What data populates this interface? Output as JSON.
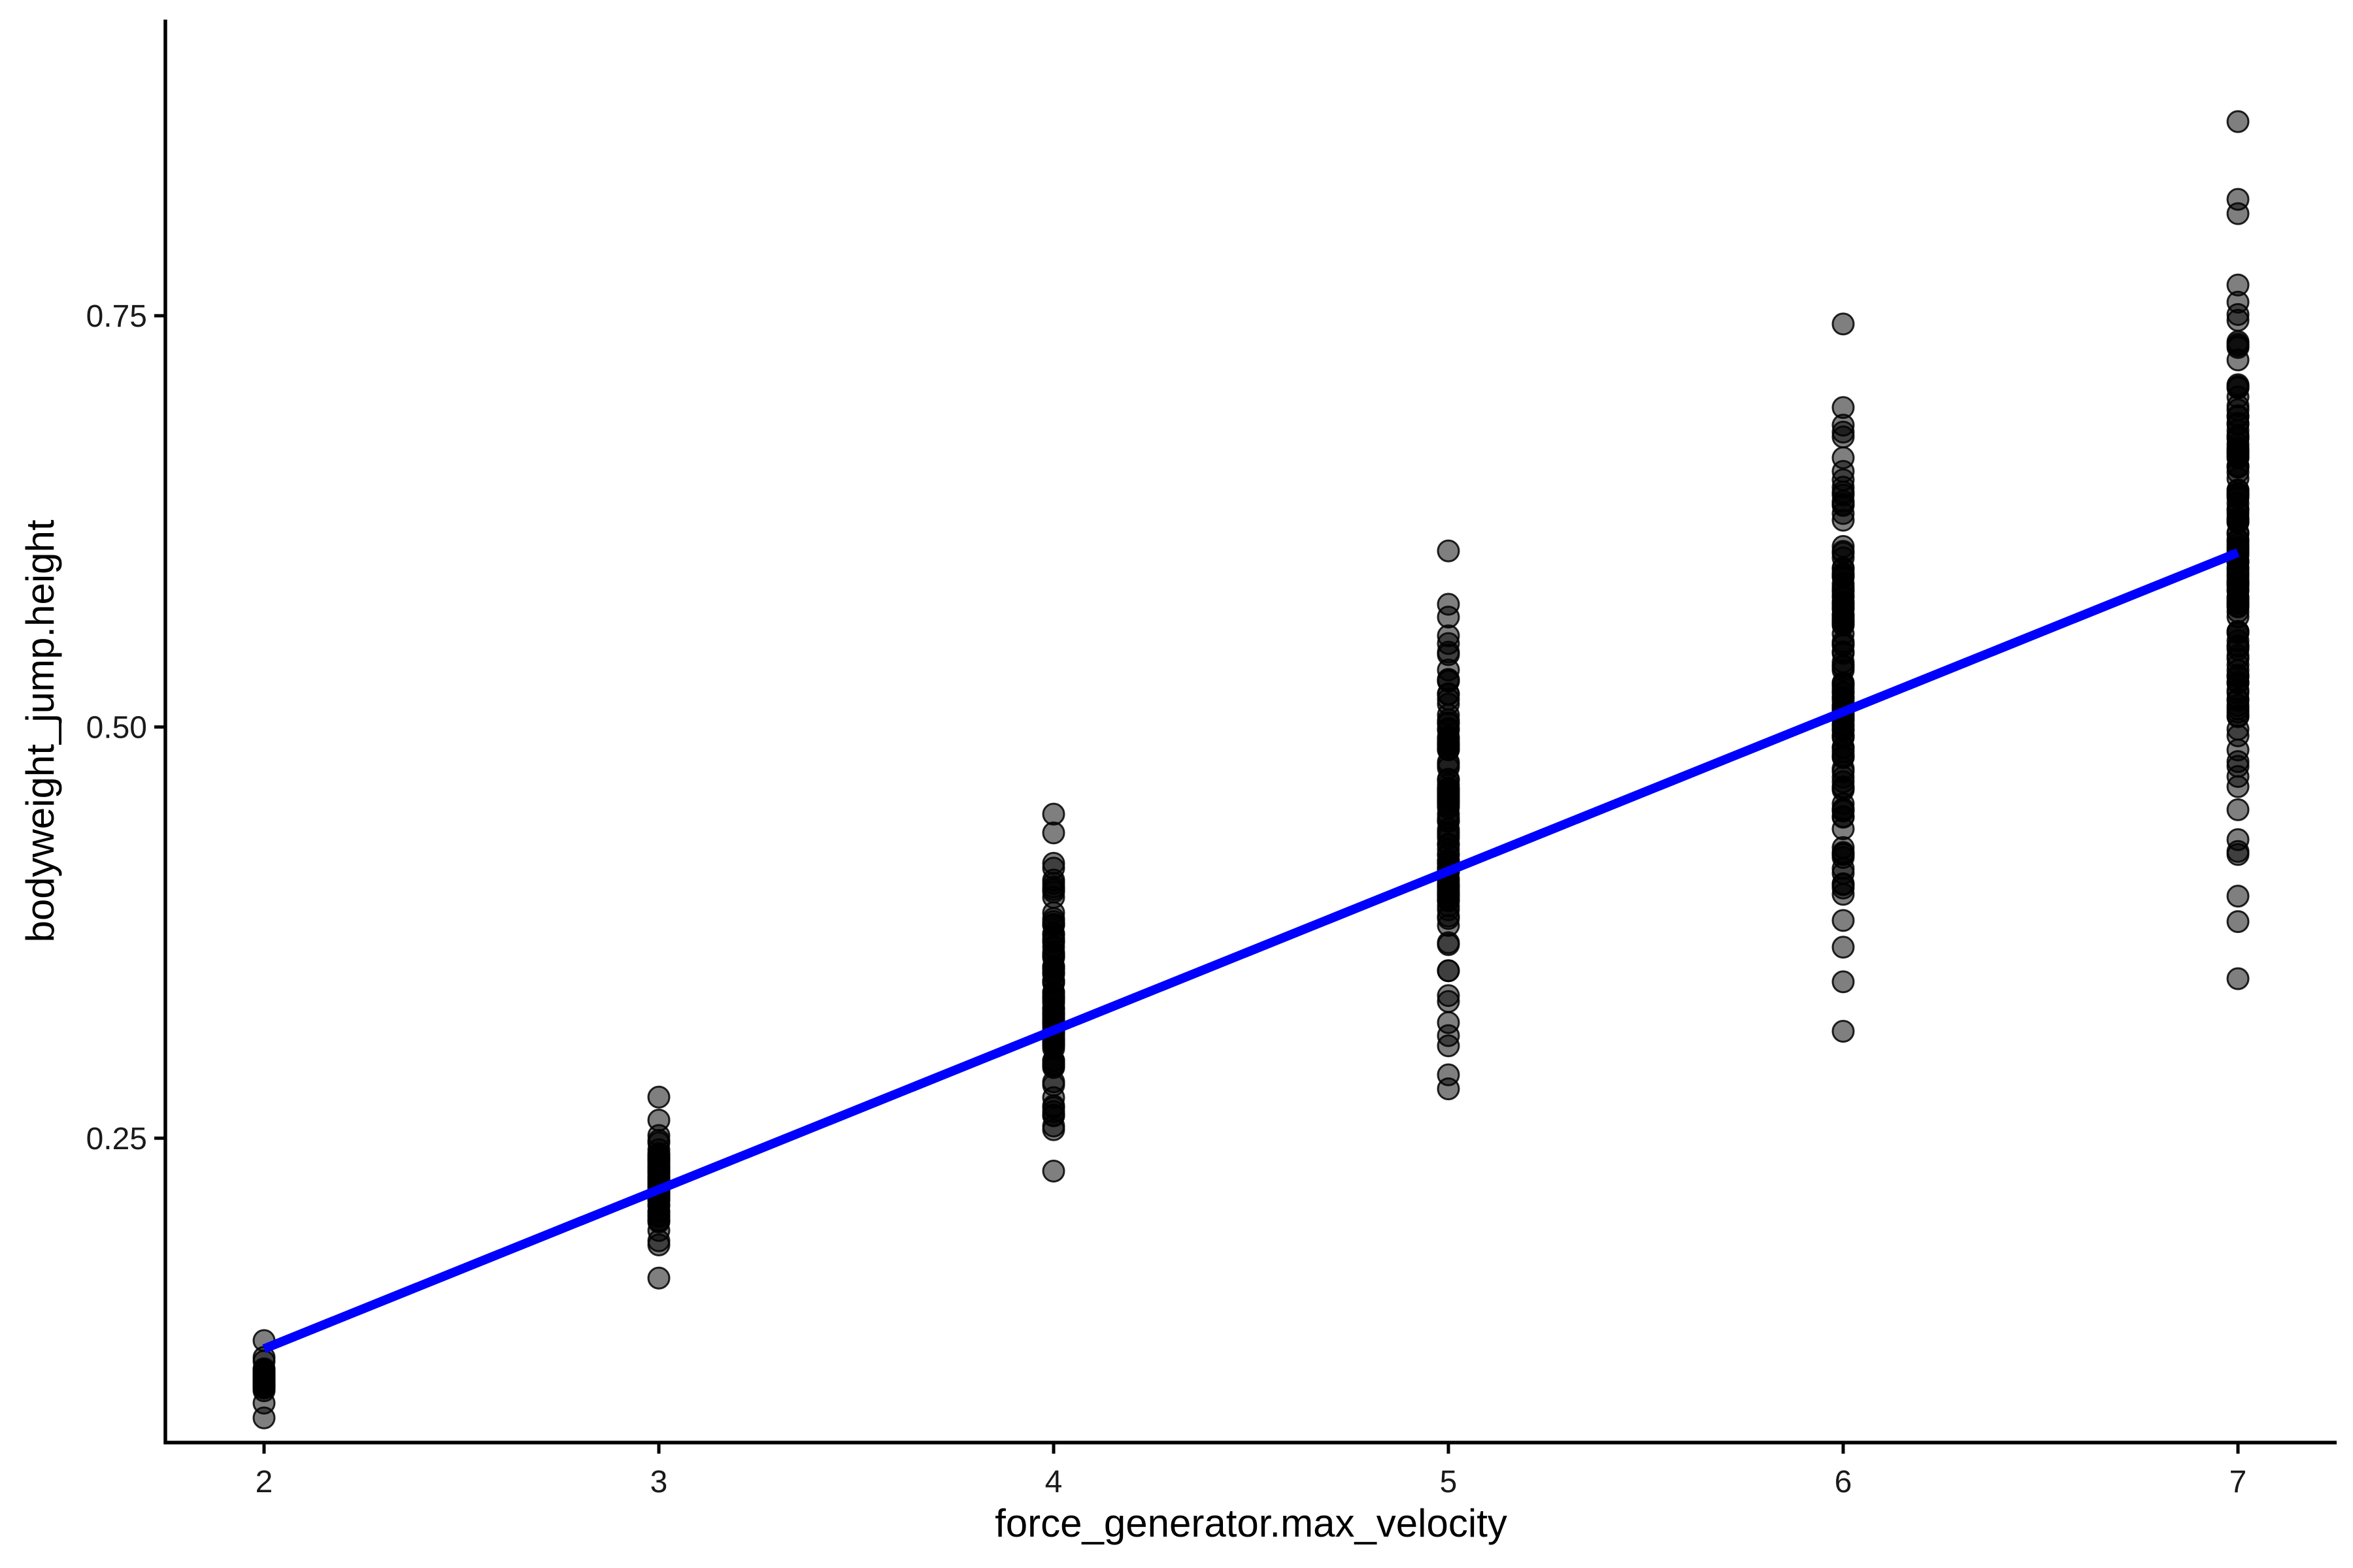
{
  "chart_data": {
    "type": "scatter",
    "title": "",
    "xlabel": "force_generator.max_velocity",
    "ylabel": "bodyweight_jump.height",
    "xlim": [
      1.75,
      7.25
    ],
    "ylim": [
      0.065,
      0.93
    ],
    "x_ticks": [
      "2",
      "3",
      "4",
      "5",
      "6",
      "7"
    ],
    "x_tick_values": [
      2,
      3,
      4,
      5,
      6,
      7
    ],
    "y_ticks": [
      "0.25",
      "0.50",
      "0.75"
    ],
    "y_tick_values": [
      0.25,
      0.5,
      0.75
    ],
    "grid": false,
    "legend": "none",
    "colors": {
      "points": "#000000",
      "fit_line": "#0000ff"
    },
    "groups": [
      {
        "x": 2,
        "y_min": 0.08,
        "y_max": 0.127,
        "count": 28
      },
      {
        "x": 3,
        "y_min": 0.165,
        "y_max": 0.275,
        "count": 60
      },
      {
        "x": 4,
        "y_min": 0.23,
        "y_max": 0.447,
        "count": 90
      },
      {
        "x": 5,
        "y_min": 0.28,
        "y_max": 0.607,
        "count": 110
      },
      {
        "x": 6,
        "y_min": 0.315,
        "y_max": 0.745,
        "count": 120
      },
      {
        "x": 7,
        "y_min": 0.347,
        "y_max": 0.868,
        "count": 130
      }
    ],
    "fit_line": {
      "x": [
        2,
        7
      ],
      "y": [
        0.122,
        0.606
      ]
    }
  }
}
